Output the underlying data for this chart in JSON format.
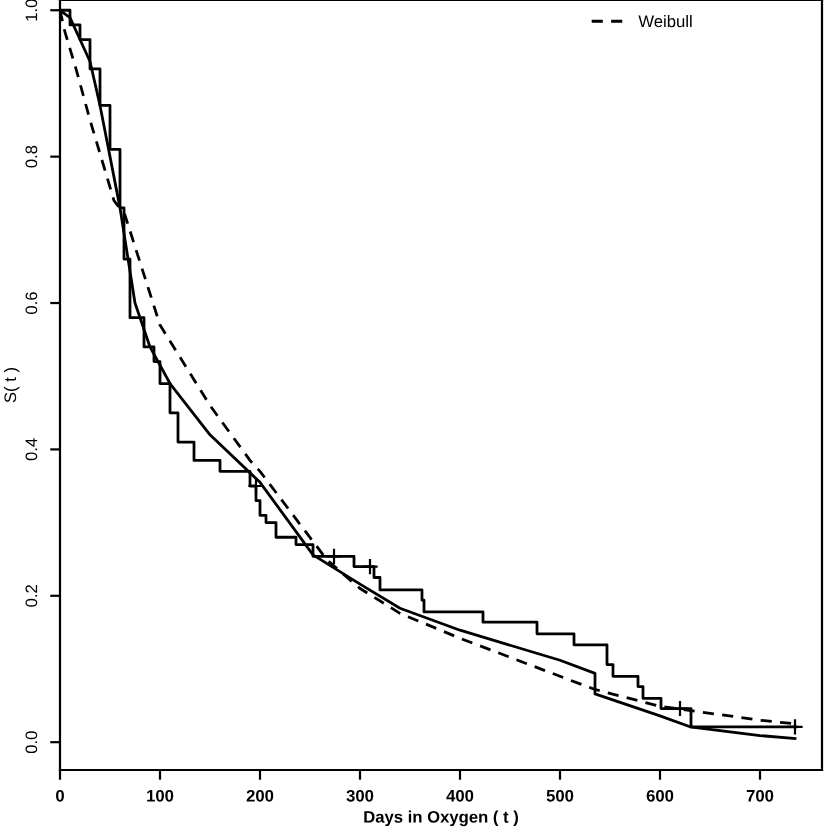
{
  "chart_data": {
    "type": "line",
    "xlabel": "Days in Oxygen ( t )",
    "ylabel": "S( t )",
    "xlim": [
      0,
      762
    ],
    "ylim": [
      -0.038,
      1.014
    ],
    "xticks": [
      0,
      100,
      200,
      300,
      400,
      500,
      600,
      700
    ],
    "yticks": [
      {
        "value": 0,
        "label": "0.0"
      },
      {
        "value": 0.2,
        "label": "0.2"
      },
      {
        "value": 0.4,
        "label": "0.4"
      },
      {
        "value": 0.6,
        "label": "0.6"
      },
      {
        "value": 0.8,
        "label": "0.8"
      },
      {
        "value": 1,
        "label": "1.0"
      }
    ],
    "grid": false,
    "legend": "top right",
    "series": [
      {
        "type": "step",
        "color": "#000000",
        "line_style": "solid",
        "x": [
          0,
          10,
          20,
          30,
          40,
          50,
          60,
          64,
          70,
          84,
          94,
          100,
          110,
          118,
          134,
          160,
          190,
          196,
          200,
          206,
          216,
          236,
          253,
          294,
          314,
          320,
          362,
          364,
          423,
          477,
          514,
          547,
          553,
          578,
          583,
          601,
          631,
          736
        ],
        "values": [
          1.0,
          0.98,
          0.96,
          0.92,
          0.87,
          0.81,
          0.73,
          0.66,
          0.58,
          0.54,
          0.52,
          0.49,
          0.45,
          0.41,
          0.385,
          0.37,
          0.35,
          0.33,
          0.31,
          0.3,
          0.28,
          0.27,
          0.254,
          0.24,
          0.225,
          0.208,
          0.194,
          0.178,
          0.164,
          0.148,
          0.133,
          0.106,
          0.09,
          0.076,
          0.06,
          0.046,
          0.021,
          0.021
        ]
      },
      {
        "type": "scatter",
        "color": "#000000",
        "marker": "cross",
        "x": [
          196,
          274,
          310,
          620,
          735
        ],
        "values": [
          0.35,
          0.254,
          0.24,
          0.046,
          0.021
        ]
      },
      {
        "color": "#000000",
        "line_style": "solid",
        "x": [
          0,
          10,
          20,
          30,
          40,
          50,
          60,
          75,
          90,
          110,
          150,
          200,
          253,
          300,
          340,
          400,
          500,
          535,
          535,
          600,
          630,
          700,
          735
        ],
        "values": [
          1.0,
          0.99,
          0.96,
          0.93,
          0.87,
          0.8,
          0.73,
          0.6,
          0.54,
          0.49,
          0.42,
          0.355,
          0.256,
          0.216,
          0.183,
          0.153,
          0.112,
          0.094,
          0.066,
          0.036,
          0.021,
          0.009,
          0.005
        ]
      },
      {
        "name": "Weibull",
        "color": "#000000",
        "line_style": "dashed",
        "x": [
          0,
          5,
          16,
          30,
          54,
          65,
          100,
          150,
          190,
          200,
          267,
          300,
          340,
          400,
          500,
          535,
          600,
          700,
          735
        ],
        "values": [
          1.0,
          0.97,
          0.92,
          0.85,
          0.74,
          0.72,
          0.57,
          0.46,
          0.385,
          0.37,
          0.249,
          0.21,
          0.176,
          0.142,
          0.09,
          0.072,
          0.049,
          0.03,
          0.025
        ]
      }
    ]
  }
}
